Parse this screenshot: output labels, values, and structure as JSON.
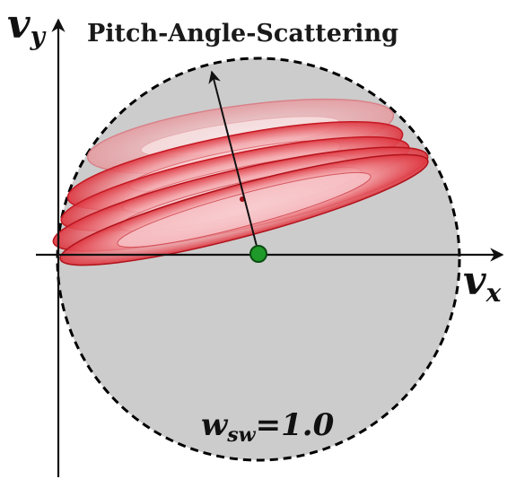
{
  "title": "Pitch-Angle-Scattering",
  "axes": {
    "x_label_main": "v",
    "x_label_sub": "x",
    "y_label_main": "v",
    "y_label_sub": "y"
  },
  "annotation": {
    "symbol": "w",
    "subscript": "sw",
    "value_text": "=1.0"
  },
  "colors": {
    "sphere_fill": "#cccccc",
    "sphere_edge": "#000000",
    "shell_red": "#e0202a",
    "shell_pale": "#f6c6c9",
    "center_dot": "#1f9a2a"
  }
}
